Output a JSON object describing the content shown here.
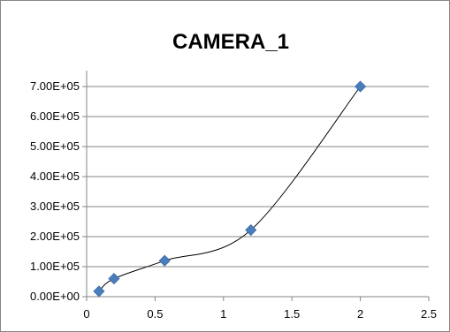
{
  "chart_data": {
    "type": "scatter",
    "title": "CAMERA_1",
    "xlabel": "",
    "ylabel": "",
    "xlim": [
      0,
      2.5
    ],
    "ylim": [
      0,
      700000
    ],
    "x_ticks": [
      "0",
      "0.5",
      "1",
      "1.5",
      "2",
      "2.5"
    ],
    "y_ticks": [
      "0.00E+00",
      "1.00E+05",
      "2.00E+05",
      "3.00E+05",
      "4.00E+05",
      "5.00E+05",
      "6.00E+05",
      "7.00E+05"
    ],
    "grid": "horizontal",
    "legend": "none",
    "trendline": "smooth curve",
    "series": [
      {
        "points": [
          {
            "x": 0.09,
            "y": 18000
          },
          {
            "x": 0.2,
            "y": 60000
          },
          {
            "x": 0.57,
            "y": 120000
          },
          {
            "x": 1.2,
            "y": 222000
          },
          {
            "x": 2.0,
            "y": 700000
          }
        ],
        "marker_color": "#4a7ebb",
        "line_color": "#000000"
      }
    ]
  }
}
